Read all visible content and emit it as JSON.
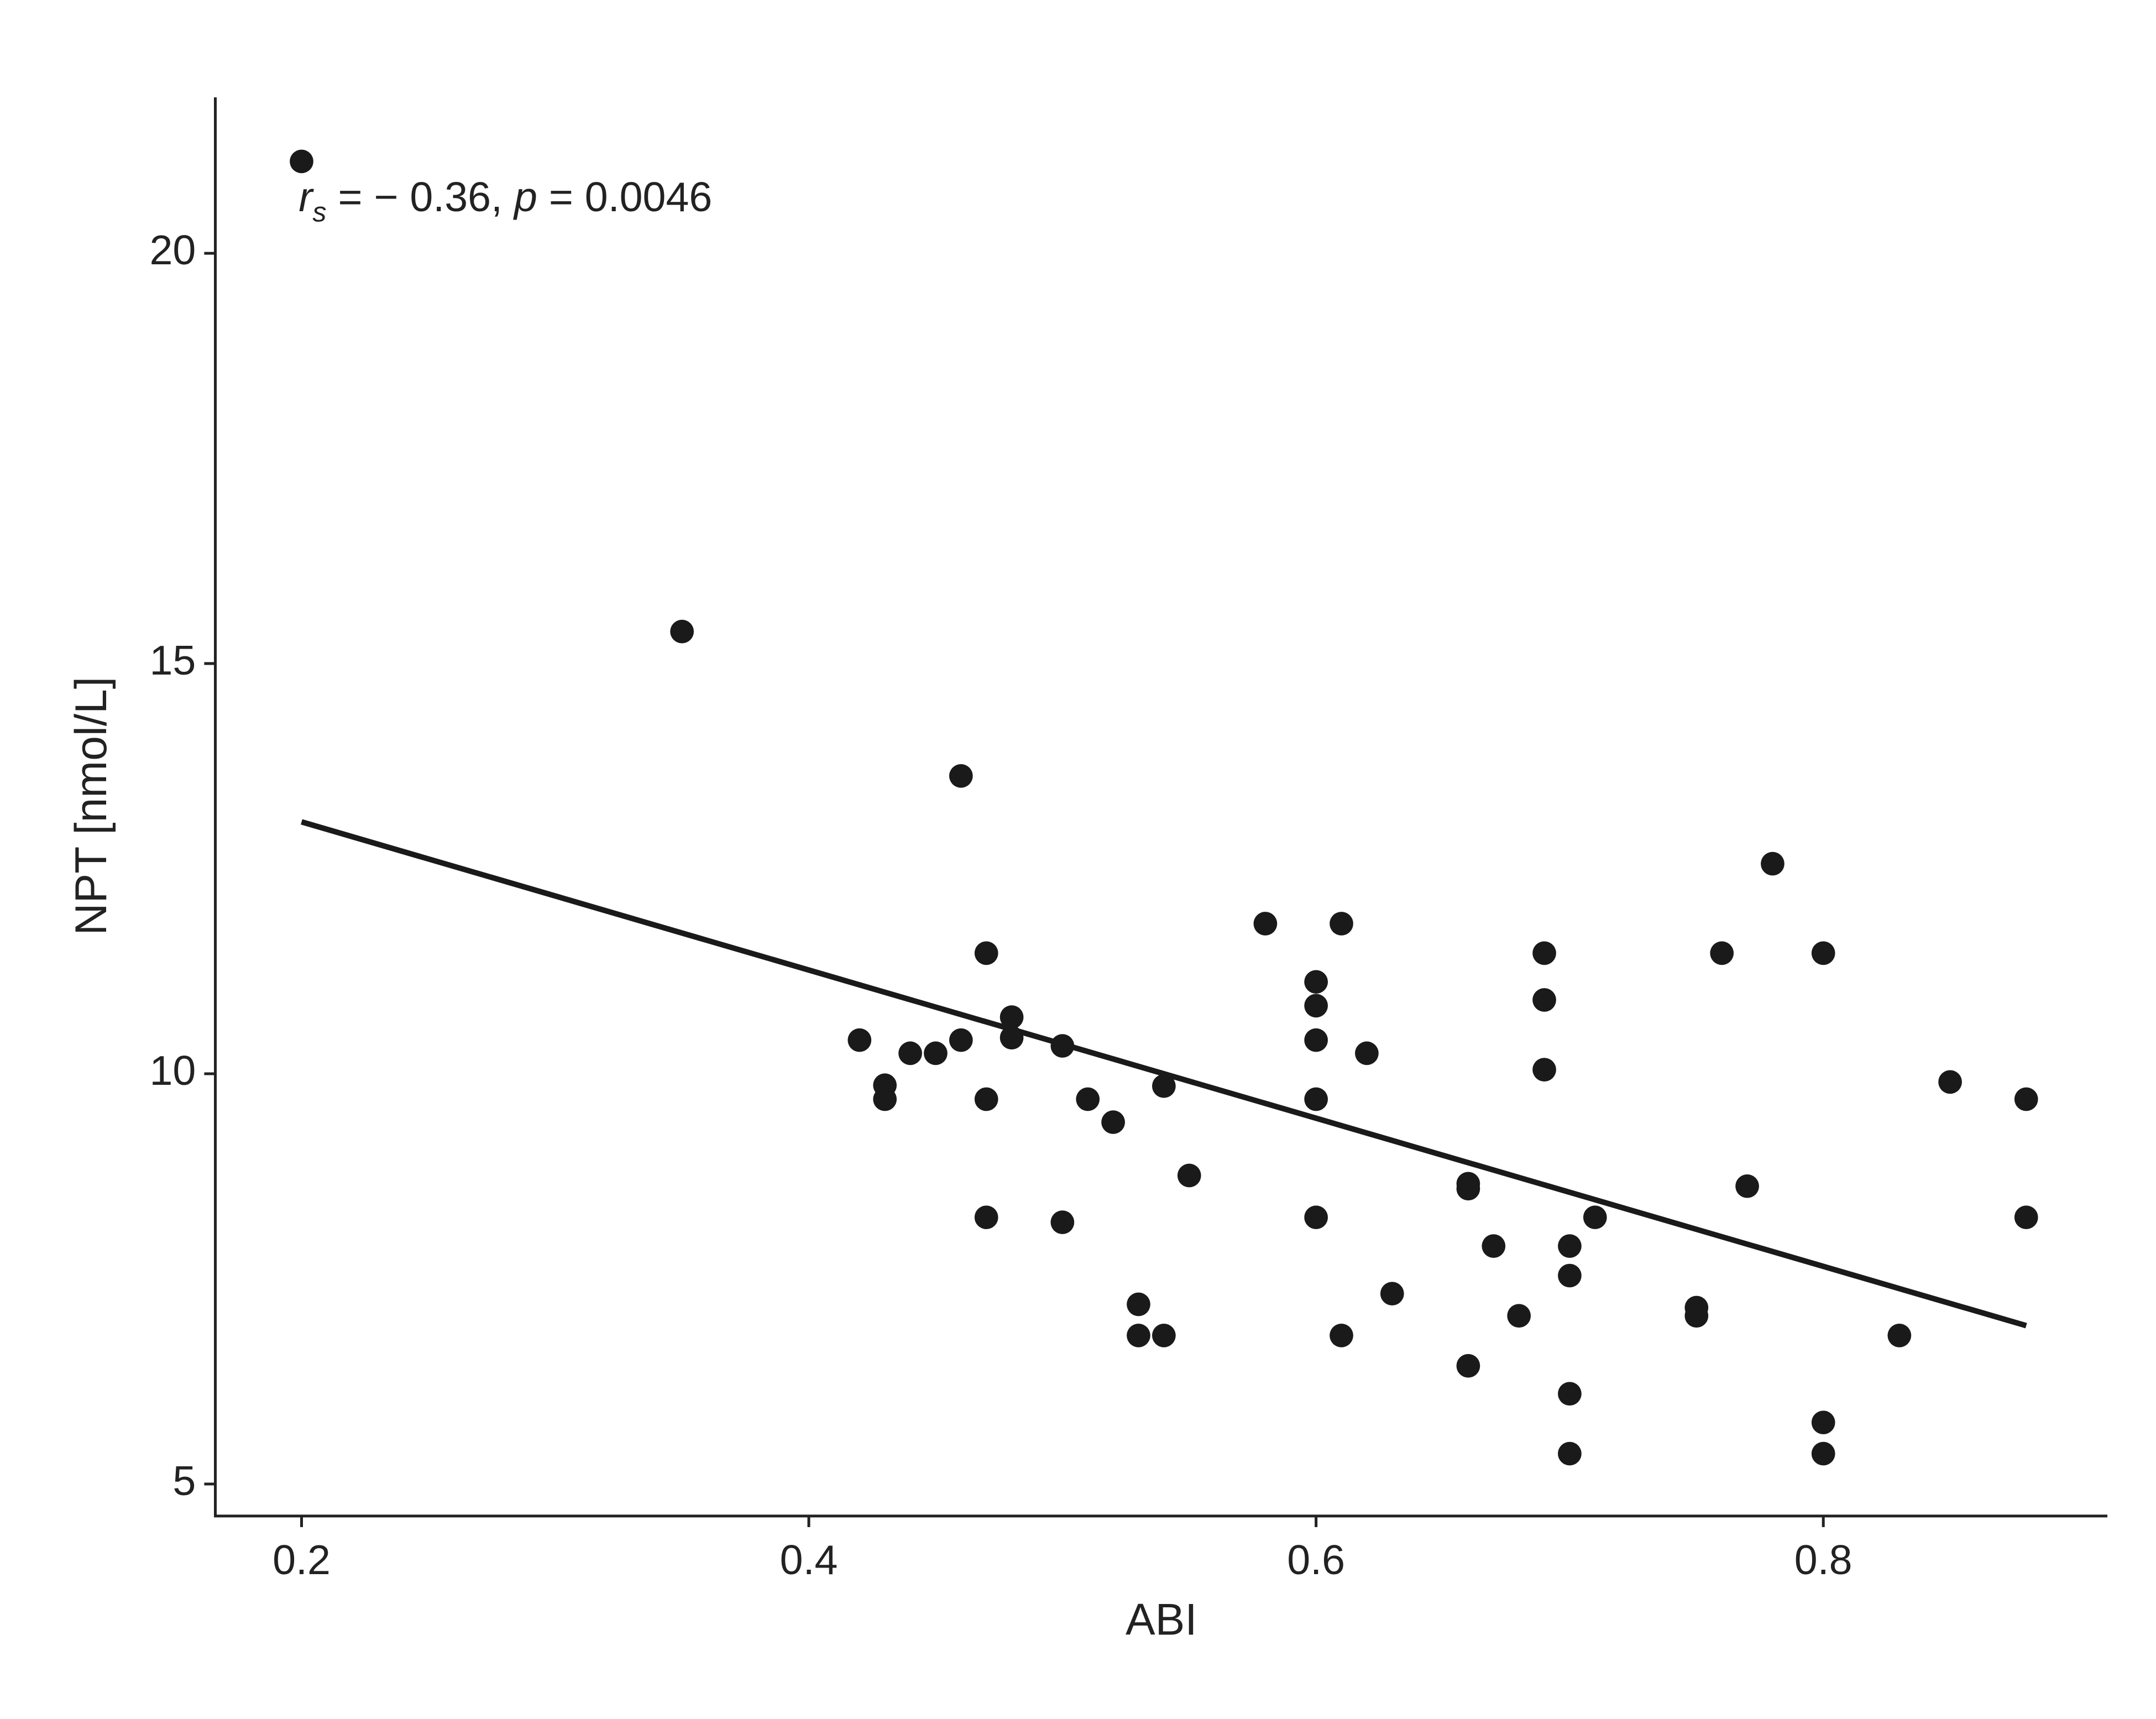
{
  "chart_data": {
    "type": "scatter",
    "x_label": "ABI",
    "y_label": "NPT [nmol/L]",
    "annotation": {
      "r": "r",
      "r_sub": "s",
      "r_rest": " = − 0.36, ",
      "p": "p",
      "p_rest": " = 0.0046"
    },
    "x": [
      0.2,
      0.35,
      0.42,
      0.43,
      0.43,
      0.44,
      0.45,
      0.46,
      0.46,
      0.47,
      0.47,
      0.47,
      0.48,
      0.48,
      0.5,
      0.5,
      0.51,
      0.52,
      0.53,
      0.53,
      0.54,
      0.54,
      0.55,
      0.58,
      0.6,
      0.6,
      0.6,
      0.6,
      0.6,
      0.61,
      0.61,
      0.62,
      0.63,
      0.66,
      0.66,
      0.66,
      0.67,
      0.68,
      0.69,
      0.69,
      0.69,
      0.7,
      0.7,
      0.7,
      0.7,
      0.71,
      0.75,
      0.75,
      0.76,
      0.77,
      0.78,
      0.8,
      0.8,
      0.8,
      0.83,
      0.85,
      0.88,
      0.88
    ],
    "values": [
      21.12,
      15.39,
      10.41,
      9.86,
      9.69,
      10.25,
      10.25,
      10.41,
      13.63,
      11.47,
      9.69,
      8.25,
      10.69,
      10.44,
      10.34,
      8.19,
      9.69,
      9.41,
      7.19,
      6.81,
      9.85,
      6.81,
      8.76,
      11.83,
      11.12,
      10.83,
      10.41,
      9.69,
      8.25,
      11.83,
      6.81,
      10.25,
      7.32,
      8.66,
      8.6,
      6.44,
      7.9,
      7.05,
      11.47,
      10.9,
      10.05,
      7.9,
      7.54,
      6.1,
      5.37,
      8.25,
      7.15,
      7.05,
      11.47,
      8.63,
      12.56,
      11.47,
      5.75,
      5.37,
      6.81,
      9.9,
      9.69,
      8.25
    ],
    "color": "#1a1a1a",
    "fit": {
      "x": [
        0.2,
        0.88
      ],
      "y": [
        13.07,
        6.93
      ]
    },
    "xlim": [
      0.166,
      0.912
    ],
    "ylim": [
      4.61,
      21.9
    ],
    "xticks": [
      0.2,
      0.4,
      0.6,
      0.8
    ],
    "yticks": [
      5,
      10,
      15,
      20
    ]
  }
}
